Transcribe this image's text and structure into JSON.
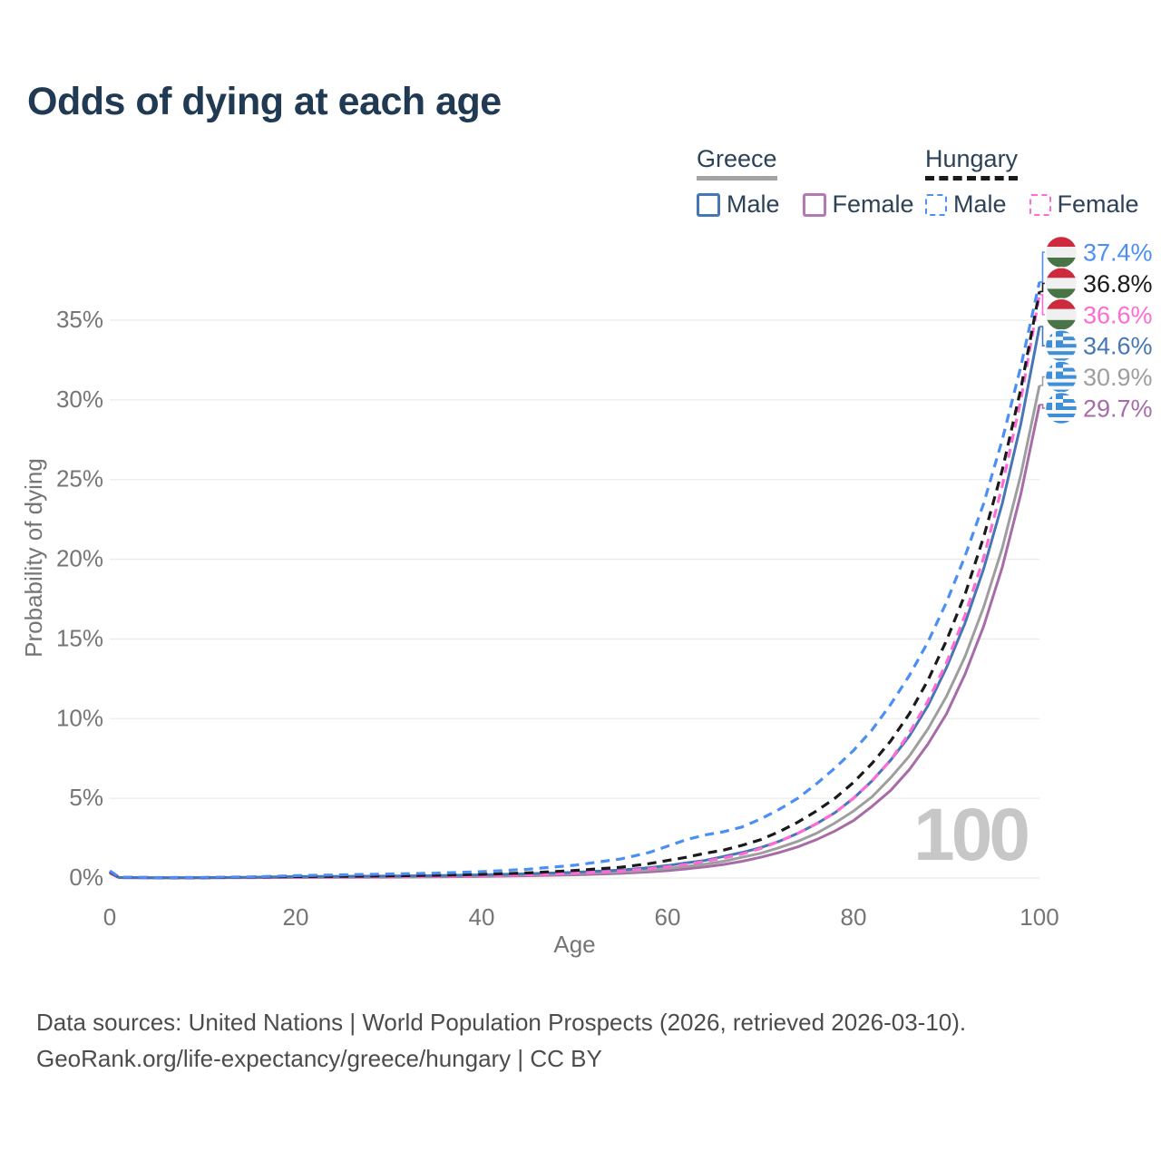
{
  "title": "Odds of dying at each age",
  "legend": {
    "greece": {
      "label": "Greece",
      "male_label": "Male",
      "female_label": "Female"
    },
    "hungary": {
      "label": "Hungary",
      "male_label": "Male",
      "female_label": "Female"
    }
  },
  "watermark": "100",
  "footer": {
    "line1": "Data sources: United Nations | World Population Prospects (2026, retrieved 2026-03-10).",
    "line2": "GeoRank.org/life-expectancy/greece/hungary | CC BY"
  },
  "colors": {
    "title": "#203a54",
    "text": "#2c4257",
    "axis": "#757575",
    "grid": "#ebebeb",
    "watermark": "#c7c7c7",
    "footer": "#4c4c4c",
    "greece_male": "#4576b5",
    "greece_female": "#b778b7",
    "greece_all": "#9e9e9e",
    "hungary_male": "#4b8ff5",
    "hungary_female": "#ff6ad5",
    "hungary_all": "#1a1a1a",
    "greek_flag_blue": "#3e8ed8",
    "hungary_flag_red": "#ce2a3d",
    "hungary_flag_green": "#497447"
  },
  "chart_data": {
    "type": "line",
    "title": "Odds of dying at each age",
    "xlabel": "Age",
    "ylabel": "Probability of dying",
    "xlim": [
      0,
      100
    ],
    "ylim": [
      0,
      39
    ],
    "xticks": [
      0,
      20,
      40,
      60,
      80,
      100
    ],
    "yticks": [
      0,
      5,
      10,
      15,
      20,
      25,
      30,
      35
    ],
    "ytick_suffix": "%",
    "grid": "horizontal",
    "legend_position": "top-right",
    "x": [
      0,
      1,
      5,
      10,
      15,
      20,
      25,
      30,
      35,
      40,
      45,
      50,
      55,
      58,
      60,
      62,
      64,
      66,
      68,
      70,
      72,
      74,
      76,
      78,
      80,
      82,
      84,
      86,
      88,
      90,
      92,
      94,
      96,
      98,
      100
    ],
    "series": [
      {
        "name": "Hungary Male",
        "country": "Hungary",
        "sex": "Male",
        "color": "#4b8ff5",
        "dash": true,
        "flag": "hungary",
        "end_label": "37.4%",
        "end_value": 37.4,
        "values": [
          0.45,
          0.05,
          0.03,
          0.04,
          0.07,
          0.15,
          0.2,
          0.25,
          0.3,
          0.4,
          0.55,
          0.8,
          1.2,
          1.6,
          2.0,
          2.4,
          2.7,
          2.9,
          3.2,
          3.7,
          4.3,
          5.0,
          5.9,
          6.9,
          8.0,
          9.3,
          10.9,
          12.7,
          14.8,
          17.3,
          20.2,
          23.5,
          27.5,
          32.1,
          37.4
        ]
      },
      {
        "name": "Hungary",
        "country": "Hungary",
        "sex": "combined",
        "color": "#1a1a1a",
        "dash": true,
        "flag": "hungary",
        "end_label": "36.8%",
        "end_value": 36.8,
        "values": [
          0.4,
          0.04,
          0.02,
          0.025,
          0.05,
          0.09,
          0.1,
          0.13,
          0.17,
          0.23,
          0.32,
          0.47,
          0.68,
          0.9,
          1.1,
          1.3,
          1.55,
          1.75,
          2.05,
          2.4,
          2.9,
          3.5,
          4.2,
          5.0,
          6.0,
          7.2,
          8.6,
          10.3,
          12.4,
          14.9,
          17.8,
          21.4,
          25.6,
          30.7,
          36.8
        ]
      },
      {
        "name": "Hungary Female",
        "country": "Hungary",
        "sex": "Female",
        "color": "#ff6ad5",
        "dash": true,
        "flag": "hungary",
        "end_label": "36.6%",
        "end_value": 36.6,
        "values": [
          0.38,
          0.03,
          0.012,
          0.015,
          0.03,
          0.045,
          0.055,
          0.07,
          0.1,
          0.14,
          0.2,
          0.3,
          0.44,
          0.58,
          0.7,
          0.85,
          1.05,
          1.25,
          1.5,
          1.85,
          2.3,
          2.8,
          3.4,
          4.1,
          5.0,
          6.1,
          7.4,
          9.1,
          11.1,
          13.5,
          16.5,
          20.1,
          24.6,
          30.0,
          36.6
        ]
      },
      {
        "name": "Greece Male",
        "country": "Greece",
        "sex": "Male",
        "color": "#4576b5",
        "dash": false,
        "flag": "greece",
        "end_label": "34.6%",
        "end_value": 34.6,
        "values": [
          0.4,
          0.035,
          0.015,
          0.02,
          0.045,
          0.09,
          0.1,
          0.12,
          0.15,
          0.2,
          0.27,
          0.36,
          0.5,
          0.65,
          0.78,
          0.95,
          1.1,
          1.35,
          1.6,
          1.9,
          2.3,
          2.8,
          3.4,
          4.1,
          5.0,
          6.1,
          7.4,
          8.9,
          10.8,
          13.2,
          16.0,
          19.4,
          23.5,
          28.5,
          34.6
        ]
      },
      {
        "name": "Greece",
        "country": "Greece",
        "sex": "combined",
        "color": "#9e9e9e",
        "dash": false,
        "flag": "greece",
        "end_label": "30.9%",
        "end_value": 30.9,
        "values": [
          0.36,
          0.03,
          0.012,
          0.015,
          0.035,
          0.06,
          0.07,
          0.09,
          0.11,
          0.15,
          0.2,
          0.28,
          0.39,
          0.5,
          0.6,
          0.72,
          0.87,
          1.05,
          1.3,
          1.55,
          1.9,
          2.3,
          2.8,
          3.45,
          4.2,
          5.1,
          6.3,
          7.65,
          9.35,
          11.4,
          13.9,
          17.0,
          20.7,
          25.3,
          30.9
        ]
      },
      {
        "name": "Greece Female",
        "country": "Greece",
        "sex": "Female",
        "color": "#a76ca7",
        "dash": false,
        "flag": "greece",
        "end_label": "29.7%",
        "end_value": 29.7,
        "values": [
          0.3,
          0.02,
          0.008,
          0.01,
          0.025,
          0.03,
          0.04,
          0.05,
          0.07,
          0.1,
          0.14,
          0.2,
          0.29,
          0.38,
          0.46,
          0.57,
          0.7,
          0.85,
          1.05,
          1.3,
          1.6,
          1.95,
          2.4,
          2.95,
          3.6,
          4.5,
          5.5,
          6.8,
          8.4,
          10.3,
          12.8,
          15.8,
          19.5,
          24.1,
          29.7
        ]
      }
    ],
    "annotations": {
      "watermark": "100"
    }
  }
}
